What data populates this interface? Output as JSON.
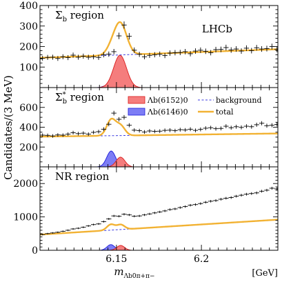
{
  "ylabel_html": "Candidates/(3 MeV)",
  "xlabel_main": "m",
  "xlabel_sub": "Λb0π+π−",
  "xunit": "[GeV]",
  "lhcb_label": "LHCb",
  "legend": {
    "lambda6152": "Λb(6152)0",
    "lambda6146": "Λb(6146)0",
    "background": "background",
    "total": "total"
  },
  "colors": {
    "lambda6152_fill": "#f57d7d",
    "lambda6152_line": "#d91a1a",
    "lambda6146_fill": "#7d7df5",
    "lambda6146_line": "#1a1ad9",
    "background": "#3a3ae0",
    "total": "#f2b233"
  },
  "chart_data": [
    {
      "type": "line",
      "region_label": "Σb region",
      "x_range": [
        6.105,
        6.245
      ],
      "ylim": [
        0,
        400
      ],
      "y_ticks": [
        100,
        200,
        300,
        400
      ],
      "x_ticks": [
        6.15,
        6.2
      ],
      "show_x_tick_labels": false,
      "background": {
        "a": 145,
        "b": 0.9
      },
      "peak_6152": {
        "mass": 6.1521,
        "amplitude": 158,
        "width": 0.0038
      },
      "peak_6146": {
        "mass": 6.1463,
        "amplitude": 18,
        "width": 0.0028
      },
      "data_points": [
        [
          6.1065,
          143
        ],
        [
          6.1095,
          147
        ],
        [
          6.1125,
          148
        ],
        [
          6.1155,
          142
        ],
        [
          6.1185,
          150
        ],
        [
          6.1215,
          146
        ],
        [
          6.1245,
          158
        ],
        [
          6.1275,
          148
        ],
        [
          6.1305,
          153
        ],
        [
          6.1335,
          148
        ],
        [
          6.1365,
          150
        ],
        [
          6.1395,
          147
        ],
        [
          6.1425,
          160
        ],
        [
          6.1455,
          163
        ],
        [
          6.1485,
          175
        ],
        [
          6.1515,
          252
        ],
        [
          6.1545,
          305
        ],
        [
          6.1575,
          250
        ],
        [
          6.1605,
          182
        ],
        [
          6.1635,
          162
        ],
        [
          6.1665,
          150
        ],
        [
          6.1695,
          157
        ],
        [
          6.1725,
          160
        ],
        [
          6.1755,
          163
        ],
        [
          6.1785,
          156
        ],
        [
          6.1815,
          168
        ],
        [
          6.1845,
          170
        ],
        [
          6.1875,
          171
        ],
        [
          6.1905,
          175
        ],
        [
          6.1935,
          165
        ],
        [
          6.1965,
          178
        ],
        [
          6.1995,
          182
        ],
        [
          6.2025,
          177
        ],
        [
          6.2055,
          170
        ],
        [
          6.2085,
          185
        ],
        [
          6.2115,
          186
        ],
        [
          6.2145,
          195
        ],
        [
          6.2175,
          183
        ],
        [
          6.2205,
          188
        ],
        [
          6.2235,
          178
        ],
        [
          6.2265,
          192
        ],
        [
          6.2295,
          180
        ],
        [
          6.2325,
          194
        ],
        [
          6.2355,
          188
        ],
        [
          6.2385,
          190
        ],
        [
          6.2415,
          200
        ],
        [
          6.2445,
          186
        ]
      ]
    },
    {
      "type": "line",
      "region_label": "Σb* region",
      "x_range": [
        6.105,
        6.245
      ],
      "ylim": [
        0,
        800
      ],
      "y_ticks": [
        200,
        400,
        600
      ],
      "x_ticks": [
        6.15,
        6.2
      ],
      "show_x_tick_labels": false,
      "background": {
        "a": 305,
        "b": 0.68
      },
      "peak_6152": {
        "mass": 6.1524,
        "amplitude": 98,
        "width": 0.0026
      },
      "peak_6146": {
        "mass": 6.1469,
        "amplitude": 160,
        "width": 0.0026
      },
      "data_points": [
        [
          6.1065,
          320
        ],
        [
          6.1095,
          318
        ],
        [
          6.1125,
          312
        ],
        [
          6.1155,
          322
        ],
        [
          6.1185,
          320
        ],
        [
          6.1215,
          330
        ],
        [
          6.1245,
          345
        ],
        [
          6.1275,
          335
        ],
        [
          6.1305,
          340
        ],
        [
          6.1335,
          330
        ],
        [
          6.1365,
          348
        ],
        [
          6.1395,
          355
        ],
        [
          6.1425,
          380
        ],
        [
          6.1455,
          430
        ],
        [
          6.1485,
          542
        ],
        [
          6.1515,
          480
        ],
        [
          6.1545,
          500
        ],
        [
          6.1575,
          420
        ],
        [
          6.1605,
          370
        ],
        [
          6.1635,
          365
        ],
        [
          6.1665,
          352
        ],
        [
          6.1695,
          362
        ],
        [
          6.1725,
          358
        ],
        [
          6.1755,
          360
        ],
        [
          6.1785,
          368
        ],
        [
          6.1815,
          370
        ],
        [
          6.1845,
          365
        ],
        [
          6.1875,
          375
        ],
        [
          6.1905,
          372
        ],
        [
          6.1935,
          380
        ],
        [
          6.1965,
          368
        ],
        [
          6.1995,
          378
        ],
        [
          6.2025,
          390
        ],
        [
          6.2055,
          395
        ],
        [
          6.2085,
          385
        ],
        [
          6.2115,
          388
        ],
        [
          6.2145,
          410
        ],
        [
          6.2175,
          395
        ],
        [
          6.2205,
          405
        ],
        [
          6.2235,
          398
        ],
        [
          6.2265,
          410
        ],
        [
          6.2295,
          405
        ],
        [
          6.2325,
          425
        ],
        [
          6.2355,
          440
        ],
        [
          6.2385,
          415
        ],
        [
          6.2415,
          420
        ],
        [
          6.2445,
          428
        ]
      ]
    },
    {
      "type": "line",
      "region_label": "NR region",
      "x_range": [
        6.105,
        6.245
      ],
      "ylim": [
        0,
        2500
      ],
      "y_ticks": [
        0,
        1000,
        2000
      ],
      "x_ticks": [
        6.15,
        6.2
      ],
      "show_x_tick_labels": true,
      "background": {
        "a": 470,
        "b": 9.6
      },
      "peak_6152": {
        "mass": 6.1525,
        "amplitude": 145,
        "width": 0.0023
      },
      "peak_6146": {
        "mass": 6.1467,
        "amplitude": 170,
        "width": 0.0023
      },
      "data_points": [
        [
          6.1065,
          470
        ],
        [
          6.1095,
          500
        ],
        [
          6.1125,
          520
        ],
        [
          6.1155,
          540
        ],
        [
          6.1185,
          570
        ],
        [
          6.1215,
          600
        ],
        [
          6.1245,
          640
        ],
        [
          6.1275,
          660
        ],
        [
          6.1305,
          690
        ],
        [
          6.1335,
          730
        ],
        [
          6.1365,
          770
        ],
        [
          6.1395,
          790
        ],
        [
          6.1425,
          860
        ],
        [
          6.1455,
          940
        ],
        [
          6.1485,
          1030
        ],
        [
          6.1515,
          1020
        ],
        [
          6.1545,
          1080
        ],
        [
          6.1575,
          1060
        ],
        [
          6.1605,
          1020
        ],
        [
          6.1635,
          1030
        ],
        [
          6.1665,
          1060
        ],
        [
          6.1695,
          1090
        ],
        [
          6.1725,
          1120
        ],
        [
          6.1755,
          1150
        ],
        [
          6.1785,
          1180
        ],
        [
          6.1815,
          1220
        ],
        [
          6.1845,
          1240
        ],
        [
          6.1875,
          1280
        ],
        [
          6.1905,
          1310
        ],
        [
          6.1935,
          1350
        ],
        [
          6.1965,
          1370
        ],
        [
          6.1995,
          1400
        ],
        [
          6.2025,
          1440
        ],
        [
          6.2055,
          1470
        ],
        [
          6.2085,
          1490
        ],
        [
          6.2115,
          1530
        ],
        [
          6.2145,
          1560
        ],
        [
          6.2175,
          1580
        ],
        [
          6.2205,
          1620
        ],
        [
          6.2235,
          1650
        ],
        [
          6.2265,
          1680
        ],
        [
          6.2295,
          1700
        ],
        [
          6.2325,
          1720
        ],
        [
          6.2355,
          1770
        ],
        [
          6.2385,
          1800
        ],
        [
          6.2415,
          1860
        ],
        [
          6.2445,
          1840
        ]
      ]
    }
  ]
}
